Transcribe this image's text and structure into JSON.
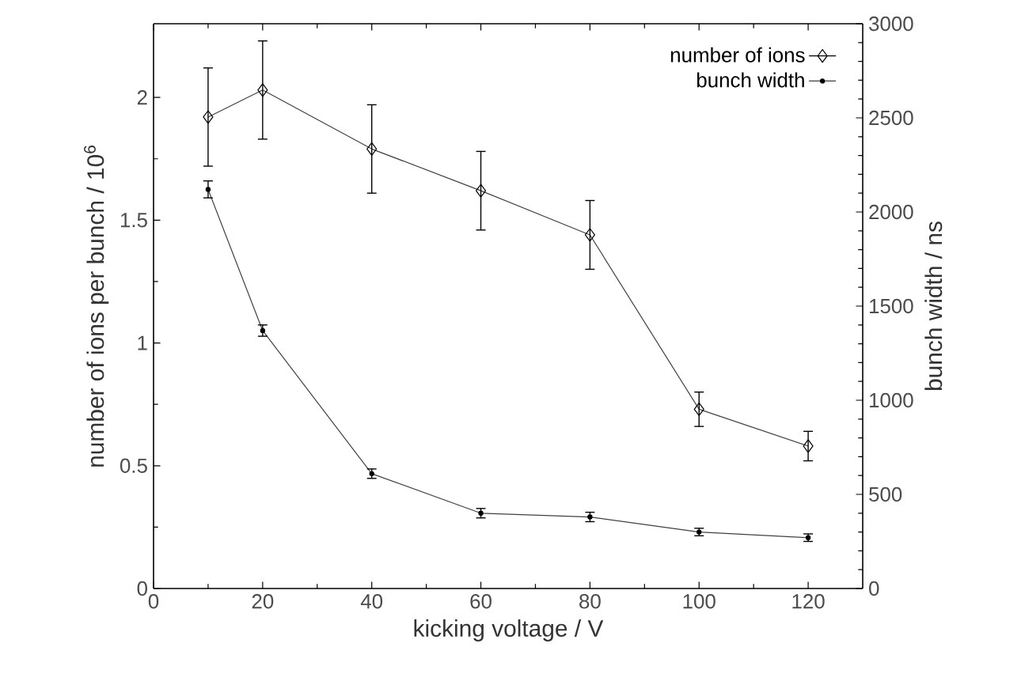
{
  "chart_data": {
    "type": "line",
    "xlabel": "kicking voltage / V",
    "ylabel": "number of ions per bunch / 10$^{6}$",
    "y2label": "bunch width / ns",
    "x": [
      10,
      20,
      40,
      60,
      80,
      100,
      120
    ],
    "series": [
      {
        "name": "number of ions",
        "color": "#404040",
        "marker": "diamond",
        "values": [
          1.92,
          2.03,
          1.79,
          1.62,
          1.44,
          0.73,
          0.58
        ],
        "errors": [
          0.2,
          0.2,
          0.18,
          0.16,
          0.14,
          0.07,
          0.06
        ]
      },
      {
        "name": "bunch width",
        "color": "#404040",
        "marker": "circle",
        "axis": "y2",
        "values": [
          2120,
          1370,
          610,
          400,
          380,
          300,
          270
        ],
        "errors": [
          45,
          30,
          25,
          25,
          25,
          20,
          20
        ]
      }
    ],
    "xlim": [
      0,
      130
    ],
    "xticks": [
      0,
      20,
      40,
      60,
      80,
      100,
      120
    ],
    "ylim": [
      0,
      2.3
    ],
    "yticks": [
      0,
      0.5,
      1,
      1.5,
      2
    ],
    "y2lim": [
      0,
      3000
    ],
    "y2ticks": [
      0,
      500,
      1000,
      1500,
      2000,
      2500,
      3000
    ],
    "legend": "top right",
    "grid": false,
    "line_style": "solid"
  }
}
